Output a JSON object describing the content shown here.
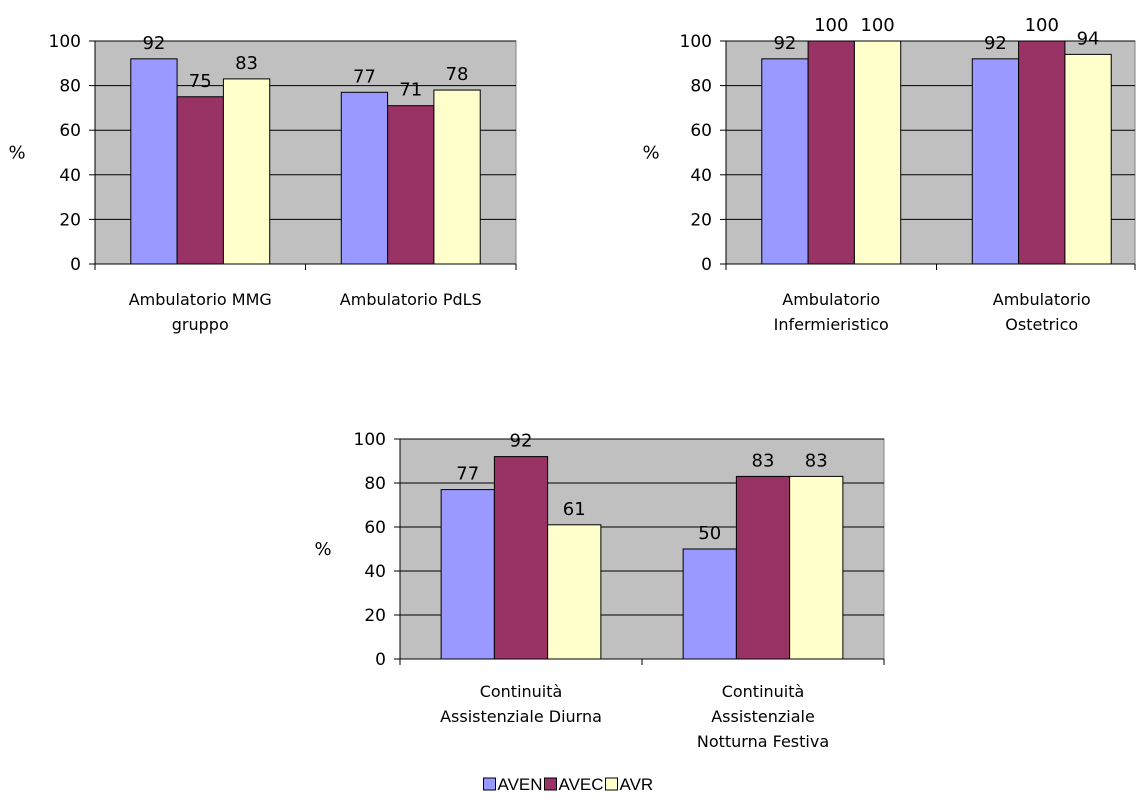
{
  "chart_data": [
    {
      "type": "bar",
      "categories": [
        [
          "Ambulatorio MMG",
          "gruppo"
        ],
        [
          "Ambulatorio PdLS"
        ]
      ],
      "series": [
        {
          "name": "AVEN",
          "values": [
            92,
            77
          ]
        },
        {
          "name": "AVEC",
          "values": [
            75,
            71
          ]
        },
        {
          "name": "AVR",
          "values": [
            83,
            78
          ]
        }
      ],
      "ylabel": "%",
      "ylim": [
        0,
        100
      ],
      "yticks": [
        "0",
        "20",
        "40",
        "60",
        "80",
        "100"
      ],
      "grid": true
    },
    {
      "type": "bar",
      "categories": [
        [
          "Ambulatorio",
          "Infermieristico"
        ],
        [
          "Ambulatorio",
          "Ostetrico"
        ]
      ],
      "series": [
        {
          "name": "AVEN",
          "values": [
            92,
            92
          ]
        },
        {
          "name": "AVEC",
          "values": [
            100,
            100
          ]
        },
        {
          "name": "AVR",
          "values": [
            100,
            94
          ]
        }
      ],
      "ylabel": "%",
      "ylim": [
        0,
        100
      ],
      "yticks": [
        "0",
        "20",
        "40",
        "60",
        "80",
        "100"
      ],
      "grid": true
    },
    {
      "type": "bar",
      "categories": [
        [
          "Continuità",
          "Assistenziale Diurna"
        ],
        [
          "Continuità",
          "Assistenziale",
          "Notturna Festiva"
        ]
      ],
      "series": [
        {
          "name": "AVEN",
          "values": [
            77,
            50
          ]
        },
        {
          "name": "AVEC",
          "values": [
            92,
            83
          ]
        },
        {
          "name": "AVR",
          "values": [
            61,
            83
          ]
        }
      ],
      "ylabel": "%",
      "ylim": [
        0,
        100
      ],
      "yticks": [
        "0",
        "20",
        "40",
        "60",
        "80",
        "100"
      ],
      "grid": true
    }
  ],
  "legend": {
    "position": "bottom",
    "items": [
      {
        "label": "AVEN",
        "color": "#9999ff"
      },
      {
        "label": "AVEC",
        "color": "#993366"
      },
      {
        "label": "AVR",
        "color": "#ffffcc"
      }
    ]
  },
  "colors": {
    "plot_bg": "#c0c0c0",
    "grid": "#000000",
    "aven": "#9999ff",
    "avec": "#993366",
    "avr": "#ffffcc"
  }
}
